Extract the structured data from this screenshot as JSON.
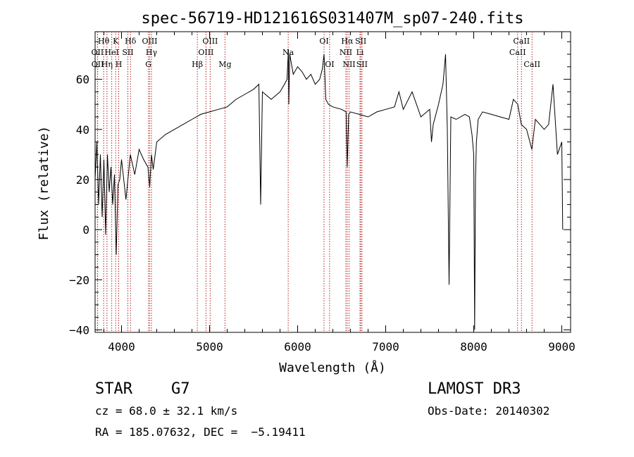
{
  "chart_data": {
    "type": "line",
    "title": "spec-56719-HD121616S031407M_sp07-240.fits",
    "xlabel": "Wavelength (Å)",
    "ylabel": "Flux (relative)",
    "xlim": [
      3700,
      9100
    ],
    "ylim": [
      -41,
      79
    ],
    "x_ticks": [
      4000,
      5000,
      6000,
      7000,
      8000,
      9000
    ],
    "x_tick_labels": [
      "4000",
      "5000",
      "6000",
      "7000",
      "8000",
      "9000"
    ],
    "y_ticks": [
      -40,
      -20,
      0,
      20,
      40,
      60
    ],
    "y_tick_labels": [
      "−40",
      "−20",
      "0",
      "20",
      "40",
      "60"
    ],
    "line_color": "#000000",
    "marker_color": "#b22222",
    "series": [
      {
        "x": [
          3700,
          3720,
          3740,
          3760,
          3780,
          3800,
          3820,
          3840,
          3860,
          3880,
          3900,
          3920,
          3940,
          3960,
          3980,
          4000,
          4050,
          4100,
          4150,
          4200,
          4250,
          4300,
          4320,
          4340,
          4360,
          4400,
          4500,
          4600,
          4700,
          4800,
          4900,
          5000,
          5100,
          5200,
          5300,
          5400,
          5500,
          5560,
          5580,
          5600,
          5700,
          5800,
          5850,
          5880,
          5895,
          5900,
          5910,
          5950,
          6000,
          6050,
          6100,
          6150,
          6200,
          6250,
          6280,
          6300,
          6320,
          6350,
          6400,
          6500,
          6550,
          6563,
          6580,
          6600,
          6700,
          6800,
          6900,
          7000,
          7100,
          7150,
          7200,
          7300,
          7400,
          7500,
          7520,
          7540,
          7600,
          7650,
          7680,
          7700,
          7720,
          7740,
          7800,
          7900,
          7950,
          7980,
          8000,
          8010,
          8020,
          8030,
          8050,
          8100,
          8200,
          8300,
          8400,
          8450,
          8500,
          8540,
          8600,
          8660,
          8700,
          8800,
          8850,
          8900,
          8950,
          9000,
          9010
        ],
        "y": [
          20,
          35,
          10,
          30,
          5,
          28,
          -2,
          30,
          15,
          25,
          10,
          22,
          -10,
          18,
          20,
          28,
          12,
          30,
          22,
          32,
          28,
          25,
          17,
          30,
          24,
          35,
          38,
          40,
          42,
          44,
          46,
          47,
          48,
          49,
          52,
          54,
          56,
          58,
          10,
          55,
          52,
          55,
          58,
          60,
          72,
          50,
          70,
          62,
          65,
          63,
          60,
          62,
          58,
          60,
          64,
          70,
          52,
          50,
          49,
          48,
          47,
          25,
          46,
          47,
          46,
          45,
          47,
          48,
          49,
          55,
          48,
          55,
          45,
          48,
          35,
          42,
          50,
          58,
          70,
          40,
          -22,
          45,
          44,
          46,
          45,
          38,
          30,
          -40,
          20,
          35,
          44,
          47,
          46,
          45,
          44,
          52,
          50,
          42,
          40,
          32,
          44,
          40,
          42,
          58,
          30,
          35,
          0
        ]
      }
    ],
    "lines": [
      {
        "label": "Hθ",
        "x": 3797,
        "row": 0
      },
      {
        "label": "OII",
        "x": 3727,
        "row": 1
      },
      {
        "label": "OII",
        "x": 3729,
        "row": 2
      },
      {
        "label": "Hη",
        "x": 3835,
        "row": 2
      },
      {
        "label": "HeI",
        "x": 3889,
        "row": 1
      },
      {
        "label": "K",
        "x": 3934,
        "row": 0
      },
      {
        "label": "H",
        "x": 3968,
        "row": 2
      },
      {
        "label": "SII",
        "x": 4072,
        "row": 1
      },
      {
        "label": "Hδ",
        "x": 4102,
        "row": 0
      },
      {
        "label": "OIII",
        "x": 4320,
        "row": 0
      },
      {
        "label": "Hγ",
        "x": 4340,
        "row": 1
      },
      {
        "label": "G",
        "x": 4305,
        "row": 2
      },
      {
        "label": "Hβ",
        "x": 4861,
        "row": 2
      },
      {
        "label": "OIII",
        "x": 5007,
        "row": 0
      },
      {
        "label": "OIII",
        "x": 4959,
        "row": 1
      },
      {
        "label": "Mg",
        "x": 5175,
        "row": 2
      },
      {
        "label": "Na",
        "x": 5893,
        "row": 1
      },
      {
        "label": "OI",
        "x": 6300,
        "row": 0
      },
      {
        "label": "OI",
        "x": 6363,
        "row": 2
      },
      {
        "label": "Hα",
        "x": 6563,
        "row": 0
      },
      {
        "label": "NII",
        "x": 6548,
        "row": 1
      },
      {
        "label": "NII",
        "x": 6584,
        "row": 2
      },
      {
        "label": "SII",
        "x": 6717,
        "row": 0
      },
      {
        "label": "Li",
        "x": 6708,
        "row": 1
      },
      {
        "label": "SII",
        "x": 6731,
        "row": 2
      },
      {
        "label": "CaII",
        "x": 8542,
        "row": 0
      },
      {
        "label": "CaII",
        "x": 8498,
        "row": 1
      },
      {
        "label": "CaII",
        "x": 8662,
        "row": 2
      }
    ]
  },
  "info": {
    "class_label": "STAR",
    "subclass": "G7",
    "survey": "LAMOST DR3",
    "cz": "cz = 68.0 ± 32.1 km/s",
    "obs_date": "Obs-Date: 20140302",
    "coords": "RA = 185.07632, DEC =  −5.19411"
  }
}
